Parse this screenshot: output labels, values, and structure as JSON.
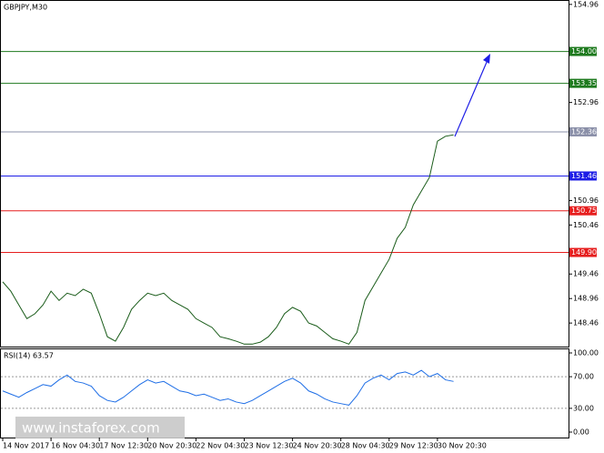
{
  "chart_data": [
    {
      "type": "line",
      "title": "GBPJPY,M30",
      "color": "#1a5c1a",
      "categories": [
        "14 Nov 2017",
        null,
        null,
        null,
        null,
        null,
        "16 Nov 04:30",
        null,
        null,
        null,
        null,
        null,
        "17 Nov 12:30",
        null,
        null,
        null,
        null,
        null,
        "20 Nov 20:30",
        null,
        null,
        null,
        null,
        null,
        "22 Nov 04:30",
        null,
        null,
        null,
        null,
        null,
        "23 Nov 12:30",
        null,
        null,
        null,
        null,
        null,
        "24 Nov 20:30",
        null,
        null,
        null,
        null,
        null,
        "28 Nov 04:30",
        null,
        null,
        null,
        null,
        null,
        "29 Nov 12:30",
        null,
        null,
        null,
        null,
        null,
        "30 Nov 20:30",
        null,
        null
      ],
      "values": [
        149.3,
        149.11,
        148.83,
        148.55,
        148.65,
        148.83,
        149.11,
        148.92,
        149.07,
        149.02,
        149.15,
        149.07,
        148.65,
        148.18,
        148.09,
        148.37,
        148.74,
        148.92,
        149.07,
        149.02,
        149.07,
        148.92,
        148.83,
        148.74,
        148.55,
        148.46,
        148.37,
        148.18,
        148.14,
        148.09,
        148.03,
        148.03,
        148.07,
        148.18,
        148.37,
        148.65,
        148.78,
        148.7,
        148.46,
        148.4,
        148.27,
        148.14,
        148.09,
        148.03,
        148.27,
        148.92,
        149.2,
        149.48,
        149.76,
        150.19,
        150.41,
        150.87,
        151.15,
        151.43,
        152.17,
        152.27,
        152.3
      ],
      "ylim": [
        147.98,
        155.05
      ],
      "yticks": [
        154.96,
        152.96,
        150.96,
        150.46,
        149.46,
        148.96,
        148.46
      ],
      "levels": [
        {
          "value": 154.0,
          "label": "154.00",
          "color": "#1e7a1e"
        },
        {
          "value": 153.35,
          "label": "153.35",
          "color": "#1e7a1e"
        },
        {
          "value": 152.36,
          "label": "152.36",
          "color": "#8a8fa8"
        },
        {
          "value": 151.46,
          "label": "151.46",
          "color": "#1e1ee6"
        },
        {
          "value": 150.75,
          "label": "150.75",
          "color": "#e61e1e"
        },
        {
          "value": 149.9,
          "label": "149.90",
          "color": "#e61e1e"
        }
      ]
    },
    {
      "type": "line",
      "title": "RSI(14) 63.57",
      "color": "#1e6ee6",
      "values": [
        52,
        48,
        44,
        50,
        55,
        60,
        58,
        66,
        72,
        64,
        62,
        58,
        46,
        40,
        38,
        44,
        52,
        60,
        66,
        62,
        64,
        58,
        52,
        50,
        46,
        48,
        44,
        40,
        42,
        38,
        36,
        40,
        46,
        52,
        58,
        64,
        68,
        62,
        52,
        48,
        42,
        38,
        36,
        34,
        46,
        62,
        68,
        72,
        66,
        74,
        76,
        72,
        78,
        70,
        74,
        66,
        64
      ],
      "ylim": [
        0,
        100
      ],
      "yticks": [
        {
          "value": 100,
          "label": "100.00"
        },
        {
          "value": 70,
          "label": "70.00"
        },
        {
          "value": 30,
          "label": "30.00"
        },
        {
          "value": 0,
          "label": "0.00"
        }
      ]
    }
  ],
  "watermark": "www.instaforex.com"
}
